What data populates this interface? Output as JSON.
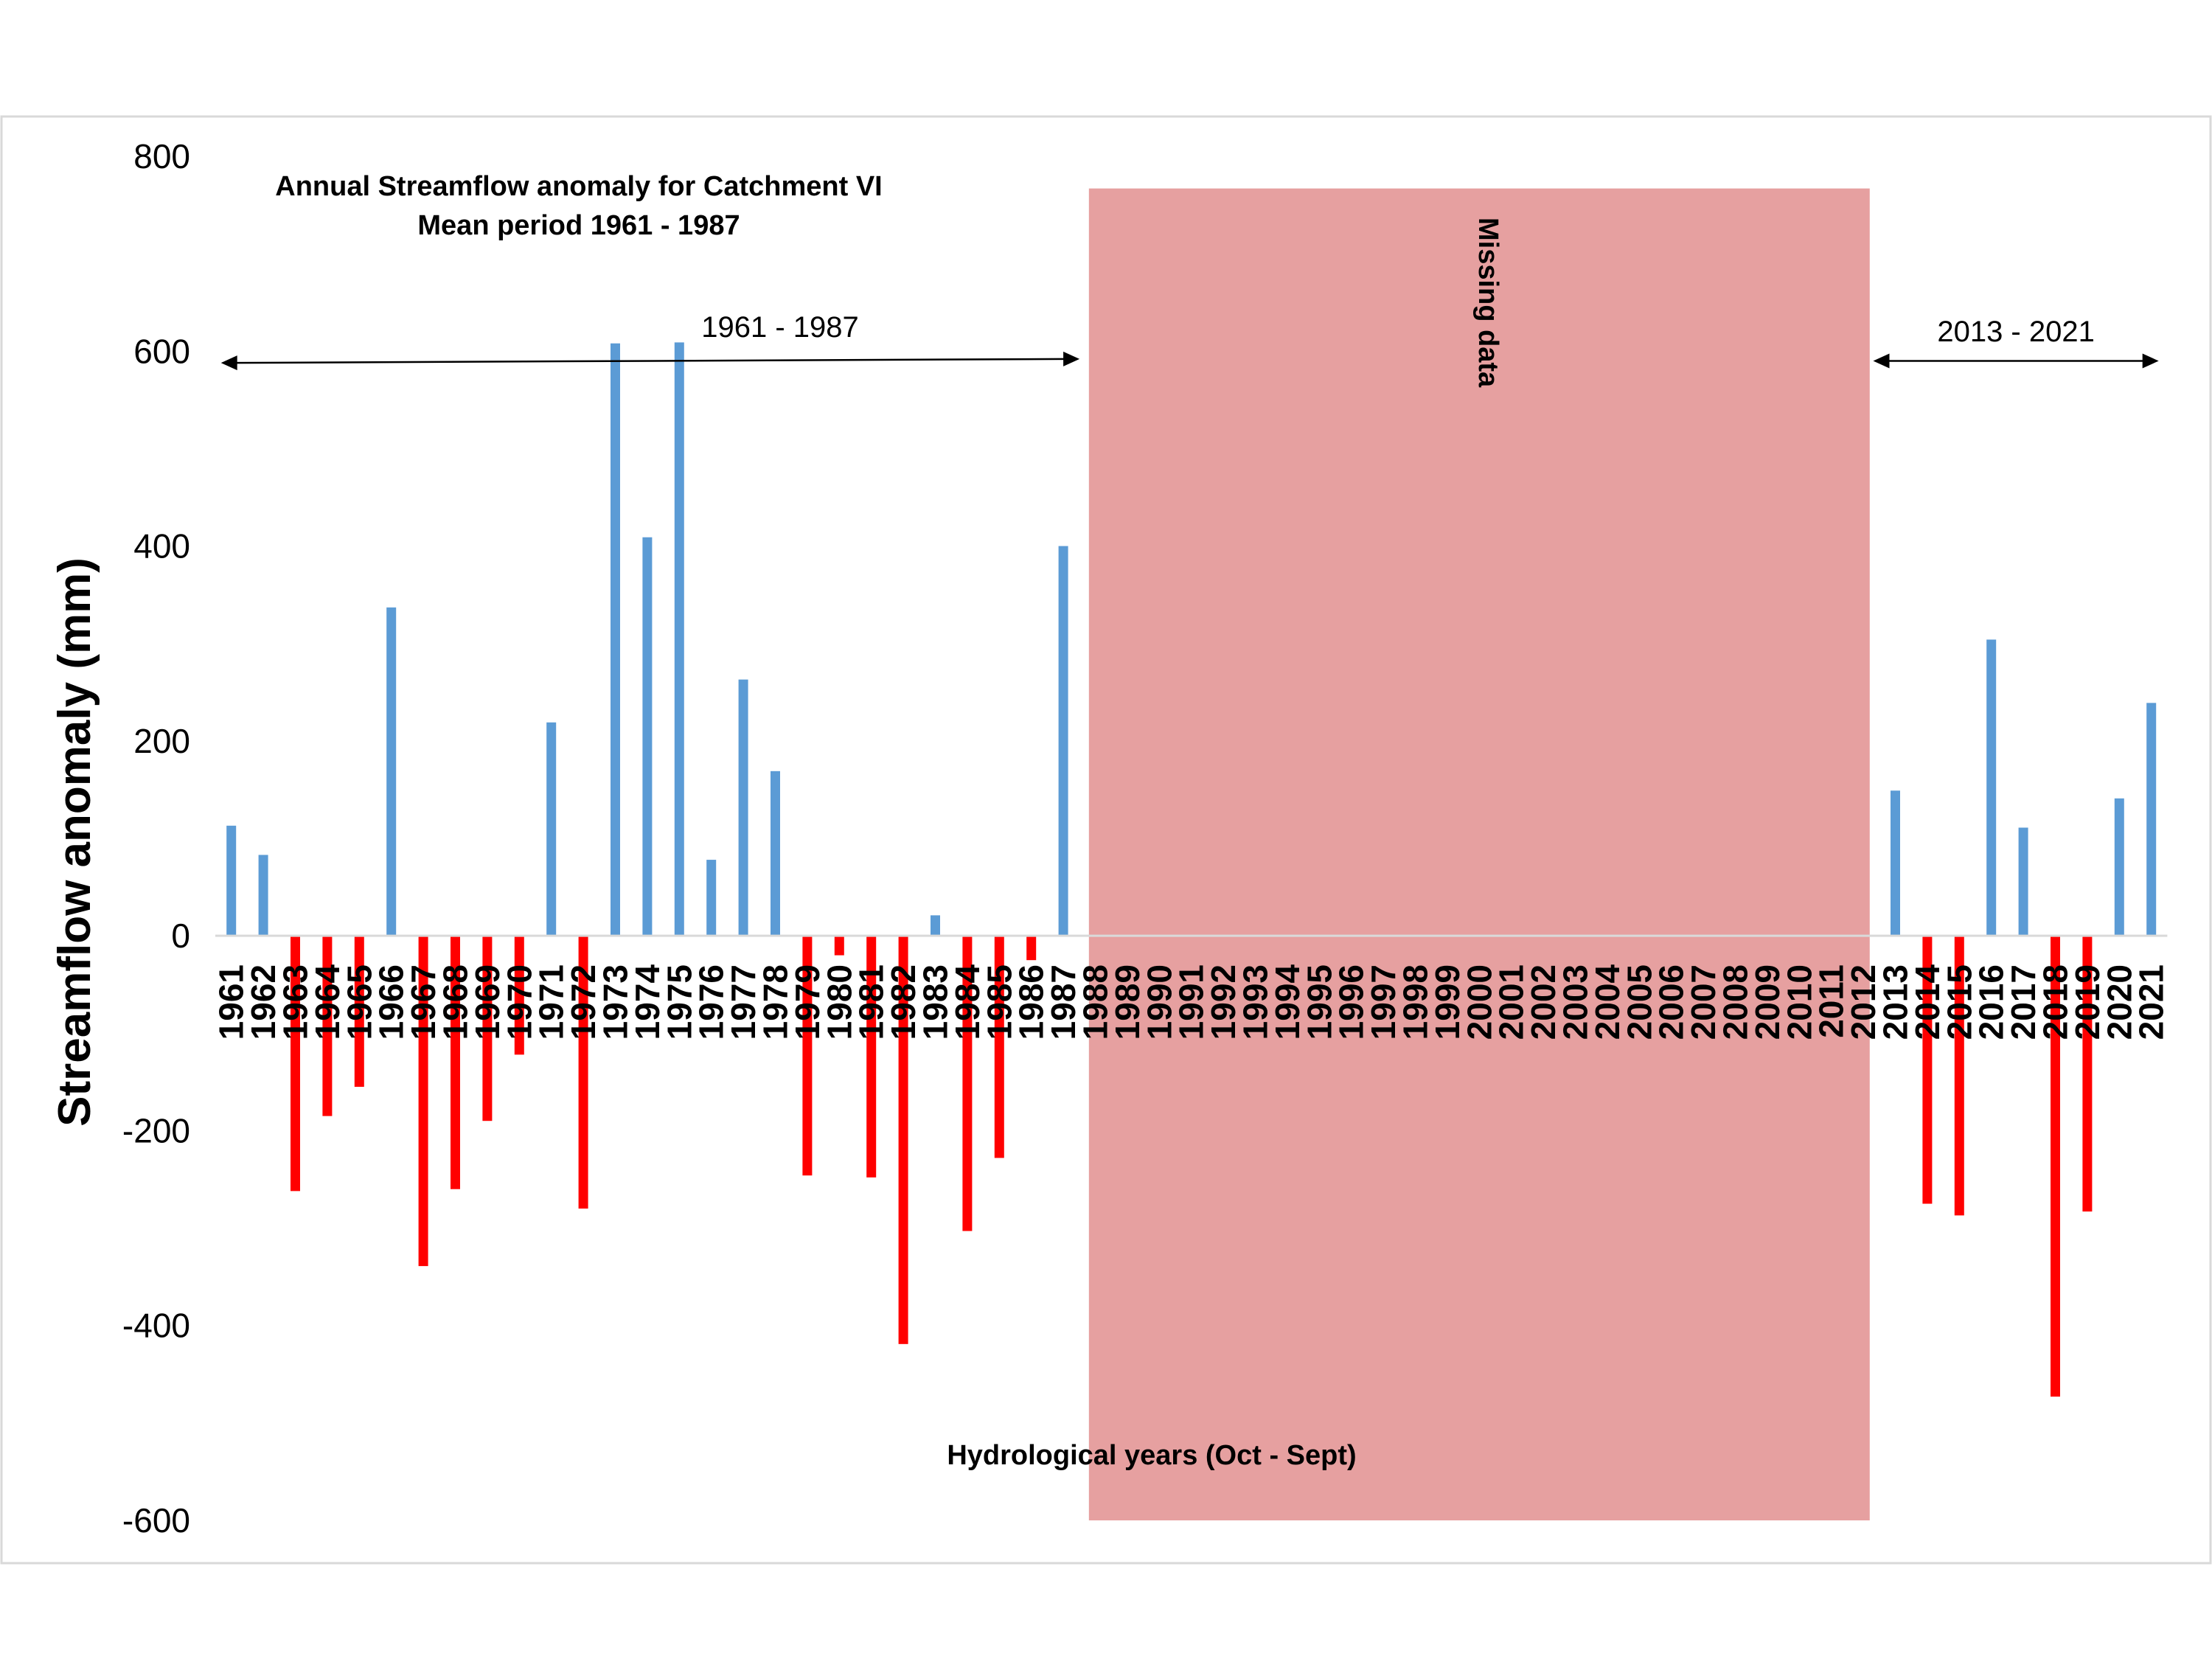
{
  "chart_data": {
    "type": "bar",
    "title": [
      "Annual Streamflow anomaly for Catchment VI",
      "Mean period 1961 - 1987"
    ],
    "xlabel": "Hydrological years (Oct - Sept)",
    "ylabel": "Streamflow anomaly (mm)",
    "ylim": [
      -600,
      800
    ],
    "yticks": [
      800,
      600,
      400,
      200,
      0,
      -200,
      -400,
      -600
    ],
    "grid": false,
    "legend": "none",
    "colors": {
      "positive": "#5b9bd5",
      "negative": "#ff0000",
      "missing": "#e6a0a0",
      "axis": "#d9d9d9"
    },
    "categories": [
      "1961",
      "1962",
      "1963",
      "1964",
      "1965",
      "1966",
      "1967",
      "1968",
      "1969",
      "1970",
      "1971",
      "1972",
      "1973",
      "1974",
      "1975",
      "1976",
      "1977",
      "1978",
      "1979",
      "1980",
      "1981",
      "1982",
      "1983",
      "1984",
      "1985",
      "1986",
      "1987",
      "1988",
      "1989",
      "1990",
      "1991",
      "1992",
      "1993",
      "1994",
      "1995",
      "1996",
      "1997",
      "1998",
      "1999",
      "2000",
      "2001",
      "2002",
      "2003",
      "2004",
      "2005",
      "2006",
      "2007",
      "2008",
      "2009",
      "2010",
      "2011",
      "2012",
      "2013",
      "2014",
      "2015",
      "2016",
      "2017",
      "2018",
      "2019",
      "2020",
      "2021"
    ],
    "values": [
      113,
      83,
      -262,
      -185,
      -155,
      337,
      -339,
      -260,
      -190,
      -122,
      219,
      -280,
      608,
      409,
      609,
      78,
      263,
      169,
      -246,
      -20,
      -248,
      -419,
      21,
      -303,
      -228,
      -25,
      400,
      null,
      null,
      null,
      null,
      null,
      null,
      null,
      null,
      null,
      null,
      null,
      null,
      null,
      null,
      null,
      null,
      null,
      null,
      null,
      null,
      null,
      null,
      null,
      null,
      null,
      149,
      -275,
      -287,
      304,
      111,
      -473,
      -283,
      141,
      239
    ],
    "missing_range": [
      "1988",
      "2012"
    ],
    "annotations": {
      "missing_label": "Missing data",
      "period1_label": "1961 - 1987",
      "period1_range": [
        "1961",
        "1987"
      ],
      "period2_label": "2013 - 2021",
      "period2_range": [
        "2013",
        "2021"
      ]
    }
  }
}
